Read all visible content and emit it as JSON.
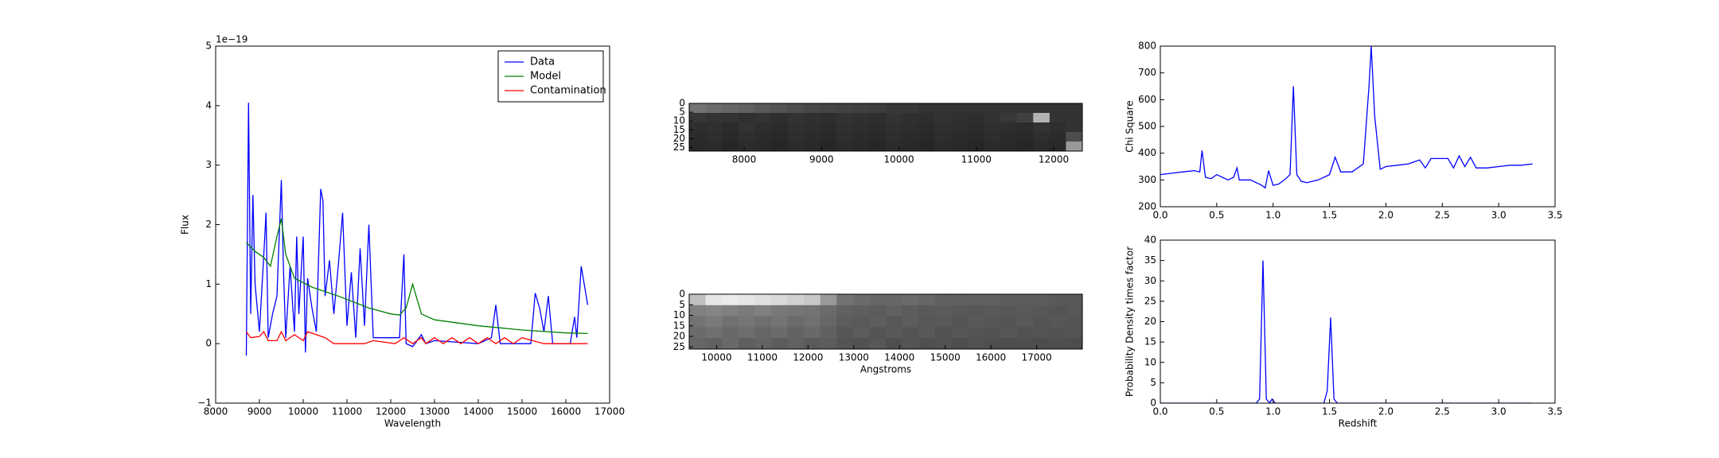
{
  "chart_data": [
    {
      "type": "line",
      "xlabel": "Wavelength",
      "ylabel": "Flux",
      "offset_text": "1e−19",
      "xlim": [
        8000,
        17000
      ],
      "ylim": [
        -1,
        5
      ],
      "xticks": [
        8000,
        9000,
        10000,
        11000,
        12000,
        13000,
        14000,
        15000,
        16000,
        17000
      ],
      "yticks": [
        {
          "value": -1,
          "label": "−1"
        },
        0,
        1,
        2,
        3,
        4,
        5
      ],
      "legend": "upper right",
      "series": [
        {
          "name": "Data",
          "color": "#0000ff",
          "x": [
            8700,
            8750,
            8800,
            8850,
            8900,
            9000,
            9100,
            9150,
            9200,
            9300,
            9400,
            9500,
            9550,
            9600,
            9700,
            9800,
            9850,
            9900,
            10000,
            10050,
            10100,
            10200,
            10300,
            10400,
            10450,
            10500,
            10600,
            10700,
            10800,
            10900,
            11000,
            11100,
            11200,
            11300,
            11400,
            11500,
            11600,
            12200,
            12300,
            12350,
            12500,
            12700,
            12800,
            13000,
            14000,
            14300,
            14400,
            14500,
            15000,
            15200,
            15300,
            15400,
            15500,
            15600,
            15700,
            16100,
            16200,
            16250,
            16350,
            16500
          ],
          "values": [
            -0.2,
            4.05,
            0.5,
            2.5,
            1.0,
            0.2,
            1.5,
            2.2,
            0.1,
            0.5,
            0.8,
            2.75,
            1.2,
            0.1,
            1.3,
            0.2,
            1.8,
            0.5,
            1.8,
            -0.15,
            1.1,
            0.6,
            0.2,
            2.6,
            2.4,
            0.8,
            1.4,
            0.5,
            1.3,
            2.2,
            0.3,
            1.2,
            0.1,
            1.6,
            0.3,
            2.0,
            0.1,
            0.1,
            1.5,
            0.0,
            -0.05,
            0.15,
            0.0,
            0.05,
            0.0,
            0.1,
            0.65,
            0.0,
            0.0,
            0.0,
            0.85,
            0.6,
            0.2,
            0.8,
            0.0,
            0.0,
            0.45,
            0.1,
            1.3,
            0.65
          ]
        },
        {
          "name": "Model",
          "color": "#008000",
          "x": [
            8700,
            8900,
            9100,
            9250,
            9400,
            9500,
            9600,
            9800,
            10200,
            10800,
            11500,
            12000,
            12200,
            12350,
            12500,
            12700,
            13000,
            14000,
            15000,
            16000,
            16500
          ],
          "values": [
            1.7,
            1.55,
            1.45,
            1.3,
            1.8,
            2.1,
            1.5,
            1.1,
            0.95,
            0.8,
            0.6,
            0.5,
            0.48,
            0.6,
            1.0,
            0.5,
            0.4,
            0.3,
            0.23,
            0.18,
            0.17
          ]
        },
        {
          "name": "Contamination",
          "color": "#ff0000",
          "x": [
            8700,
            8800,
            9000,
            9100,
            9200,
            9400,
            9500,
            9600,
            9800,
            10000,
            10100,
            10300,
            10500,
            10700,
            11400,
            11600,
            12100,
            12300,
            12500,
            12700,
            12800,
            13000,
            13200,
            13400,
            13600,
            13800,
            14000,
            14200,
            14400,
            14600,
            14800,
            15000,
            15500,
            16500
          ],
          "values": [
            0.2,
            0.1,
            0.12,
            0.2,
            0.05,
            0.05,
            0.2,
            0.05,
            0.15,
            0.05,
            0.2,
            0.15,
            0.1,
            0.0,
            0.0,
            0.05,
            0.0,
            0.1,
            0.0,
            0.1,
            0.0,
            0.1,
            0.0,
            0.1,
            0.0,
            0.1,
            0.0,
            0.1,
            0.0,
            0.1,
            0.0,
            0.1,
            0.0,
            0.0
          ]
        }
      ]
    },
    {
      "type": "image",
      "y_inverted": true,
      "xlim": [
        7290,
        12370
      ],
      "ylim": [
        0,
        27
      ],
      "xticks": [
        8000,
        9000,
        10000,
        11000,
        12000
      ],
      "yticks": [
        0,
        5,
        10,
        15,
        20,
        25
      ],
      "values": [
        [
          0.45,
          0.42,
          0.4,
          0.38,
          0.35,
          0.33,
          0.3,
          0.28,
          0.27,
          0.26,
          0.25,
          0.24,
          0.22,
          0.22,
          0.2,
          0.2,
          0.2,
          0.2,
          0.2,
          0.2,
          0.2,
          0.2,
          0.2,
          0.2
        ],
        [
          0.22,
          0.2,
          0.2,
          0.19,
          0.2,
          0.18,
          0.2,
          0.19,
          0.18,
          0.2,
          0.19,
          0.18,
          0.2,
          0.19,
          0.18,
          0.2,
          0.19,
          0.18,
          0.2,
          0.22,
          0.25,
          0.7,
          0.2,
          0.2
        ],
        [
          0.18,
          0.19,
          0.17,
          0.2,
          0.18,
          0.17,
          0.19,
          0.18,
          0.17,
          0.19,
          0.18,
          0.17,
          0.19,
          0.18,
          0.17,
          0.19,
          0.18,
          0.17,
          0.19,
          0.18,
          0.17,
          0.2,
          0.18,
          0.2
        ],
        [
          0.17,
          0.18,
          0.16,
          0.18,
          0.17,
          0.16,
          0.18,
          0.17,
          0.16,
          0.18,
          0.17,
          0.16,
          0.18,
          0.17,
          0.16,
          0.18,
          0.17,
          0.16,
          0.18,
          0.17,
          0.16,
          0.18,
          0.17,
          0.3
        ],
        [
          0.16,
          0.17,
          0.15,
          0.17,
          0.16,
          0.15,
          0.17,
          0.16,
          0.15,
          0.17,
          0.16,
          0.15,
          0.17,
          0.16,
          0.15,
          0.17,
          0.16,
          0.15,
          0.17,
          0.16,
          0.15,
          0.17,
          0.16,
          0.6
        ]
      ]
    },
    {
      "type": "image",
      "y_inverted": true,
      "xlabel": "Angstroms",
      "xlim": [
        9400,
        18000
      ],
      "ylim": [
        0,
        26
      ],
      "xticks": [
        10000,
        11000,
        12000,
        13000,
        14000,
        15000,
        16000,
        17000
      ],
      "yticks": [
        0,
        5,
        10,
        15,
        20,
        25
      ],
      "values": [
        [
          0.75,
          0.9,
          0.92,
          0.9,
          0.88,
          0.85,
          0.82,
          0.78,
          0.6,
          0.45,
          0.42,
          0.4,
          0.4,
          0.42,
          0.4,
          0.38,
          0.38,
          0.38,
          0.38,
          0.36,
          0.36,
          0.36,
          0.35,
          0.35
        ],
        [
          0.5,
          0.52,
          0.5,
          0.48,
          0.5,
          0.47,
          0.46,
          0.45,
          0.42,
          0.38,
          0.37,
          0.36,
          0.38,
          0.36,
          0.35,
          0.36,
          0.35,
          0.34,
          0.35,
          0.34,
          0.35,
          0.34,
          0.33,
          0.34
        ],
        [
          0.45,
          0.48,
          0.44,
          0.46,
          0.43,
          0.45,
          0.42,
          0.44,
          0.4,
          0.36,
          0.35,
          0.37,
          0.34,
          0.36,
          0.34,
          0.35,
          0.33,
          0.35,
          0.34,
          0.33,
          0.35,
          0.33,
          0.34,
          0.33
        ],
        [
          0.42,
          0.44,
          0.41,
          0.43,
          0.4,
          0.42,
          0.39,
          0.41,
          0.38,
          0.34,
          0.36,
          0.33,
          0.35,
          0.33,
          0.35,
          0.32,
          0.34,
          0.33,
          0.32,
          0.34,
          0.32,
          0.33,
          0.32,
          0.33
        ],
        [
          0.4,
          0.38,
          0.41,
          0.37,
          0.39,
          0.36,
          0.38,
          0.35,
          0.36,
          0.33,
          0.32,
          0.34,
          0.31,
          0.33,
          0.31,
          0.32,
          0.3,
          0.32,
          0.31,
          0.3,
          0.31,
          0.3,
          0.31,
          0.3
        ]
      ]
    },
    {
      "type": "line",
      "ylabel": "Chi Square",
      "color": "#0000ff",
      "xlim": [
        0,
        3.5
      ],
      "ylim": [
        200,
        800
      ],
      "xticks": [
        {
          "value": 0,
          "label": "0.0"
        },
        0.5,
        {
          "value": 1,
          "label": "1.0"
        },
        1.5,
        {
          "value": 2,
          "label": "2.0"
        },
        2.5,
        {
          "value": 3,
          "label": "3.0"
        },
        3.5
      ],
      "yticks": [
        200,
        300,
        400,
        500,
        600,
        700,
        800
      ],
      "x": [
        0,
        0.1,
        0.2,
        0.3,
        0.35,
        0.37,
        0.4,
        0.45,
        0.5,
        0.55,
        0.6,
        0.65,
        0.68,
        0.7,
        0.8,
        0.9,
        0.93,
        0.96,
        1.0,
        1.05,
        1.1,
        1.15,
        1.18,
        1.21,
        1.25,
        1.3,
        1.4,
        1.5,
        1.55,
        1.6,
        1.7,
        1.8,
        1.85,
        1.87,
        1.9,
        1.95,
        2.0,
        2.1,
        2.2,
        2.3,
        2.35,
        2.4,
        2.5,
        2.55,
        2.6,
        2.65,
        2.7,
        2.75,
        2.8,
        2.9,
        3.0,
        3.1,
        3.2,
        3.3
      ],
      "values": [
        320,
        325,
        330,
        335,
        330,
        410,
        310,
        305,
        320,
        310,
        300,
        310,
        345,
        300,
        300,
        280,
        270,
        335,
        280,
        285,
        300,
        320,
        650,
        320,
        295,
        290,
        300,
        320,
        385,
        330,
        330,
        360,
        650,
        800,
        540,
        340,
        350,
        355,
        360,
        375,
        345,
        380,
        380,
        380,
        345,
        390,
        350,
        385,
        345,
        345,
        350,
        355,
        355,
        360
      ]
    },
    {
      "type": "line",
      "xlabel": "Redshift",
      "ylabel": "Probability Density times factor",
      "color": "#0000ff",
      "xlim": [
        0,
        3.5
      ],
      "ylim": [
        0,
        40
      ],
      "xticks": [
        {
          "value": 0,
          "label": "0.0"
        },
        0.5,
        {
          "value": 1,
          "label": "1.0"
        },
        1.5,
        {
          "value": 2,
          "label": "2.0"
        },
        2.5,
        {
          "value": 3,
          "label": "3.0"
        },
        3.5
      ],
      "yticks": [
        0,
        5,
        10,
        15,
        20,
        25,
        30,
        35,
        40
      ],
      "x": [
        0,
        0.85,
        0.88,
        0.91,
        0.94,
        0.97,
        0.99,
        1.02,
        1.45,
        1.48,
        1.51,
        1.54,
        1.57,
        3.3
      ],
      "values": [
        0,
        0,
        1,
        35,
        1,
        0,
        1,
        0,
        0,
        3,
        21,
        1,
        0,
        0
      ]
    }
  ]
}
